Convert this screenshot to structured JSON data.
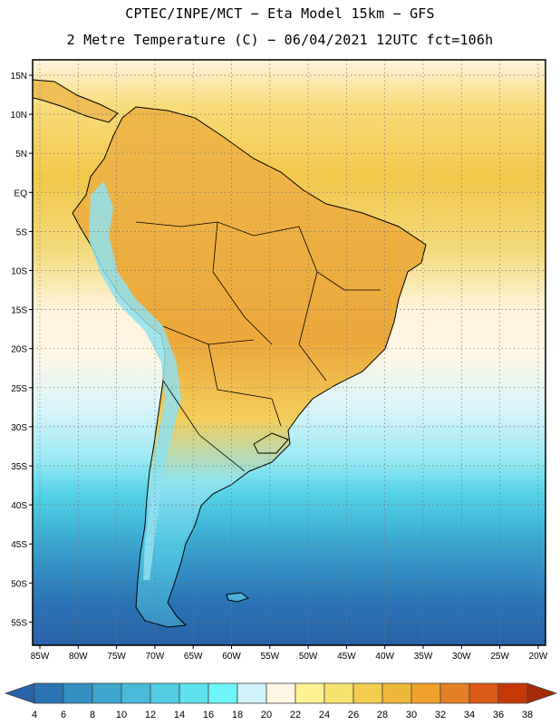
{
  "header": {
    "line1": "CPTEC/INPE/MCT −  Eta Model 15km − GFS",
    "line2": "2 Metre Temperature (C) − 06/04/2021 12UTC fct=106h"
  },
  "map": {
    "lat_labels": [
      "15N",
      "10N",
      "5N",
      "EQ",
      "5S",
      "10S",
      "15S",
      "20S",
      "25S",
      "30S",
      "35S",
      "40S",
      "45S",
      "50S",
      "55S"
    ],
    "lon_labels": [
      "85W",
      "80W",
      "75W",
      "70W",
      "65W",
      "60W",
      "55W",
      "50W",
      "45W",
      "40W",
      "35W",
      "30W",
      "25W",
      "20W"
    ],
    "bands_hex": [
      "#fff4dd",
      "#f8dc7a",
      "#f0c84a",
      "#f2d978",
      "#fff4dd",
      "#fff6e4",
      "#d6f4fb",
      "#9ceaf4",
      "#55d4e6",
      "#3fb5d6",
      "#3593c6",
      "#2b72b4",
      "#2a62a8"
    ]
  },
  "legend": {
    "values": [
      "4",
      "6",
      "8",
      "10",
      "12",
      "14",
      "16",
      "18",
      "20",
      "22",
      "24",
      "26",
      "28",
      "30",
      "32",
      "34",
      "36",
      "38"
    ],
    "colors": [
      "#2a62a8",
      "#2c72b4",
      "#348fc3",
      "#3fa6cd",
      "#49bad8",
      "#53cde2",
      "#5ee2ec",
      "#6df5f7",
      "#d0f3fb",
      "#fff6e4",
      "#fff293",
      "#f7e26d",
      "#f3cd4d",
      "#eeb83a",
      "#f0a12a",
      "#e48024",
      "#dc5a15",
      "#c63a08",
      "#a52a05"
    ]
  }
}
